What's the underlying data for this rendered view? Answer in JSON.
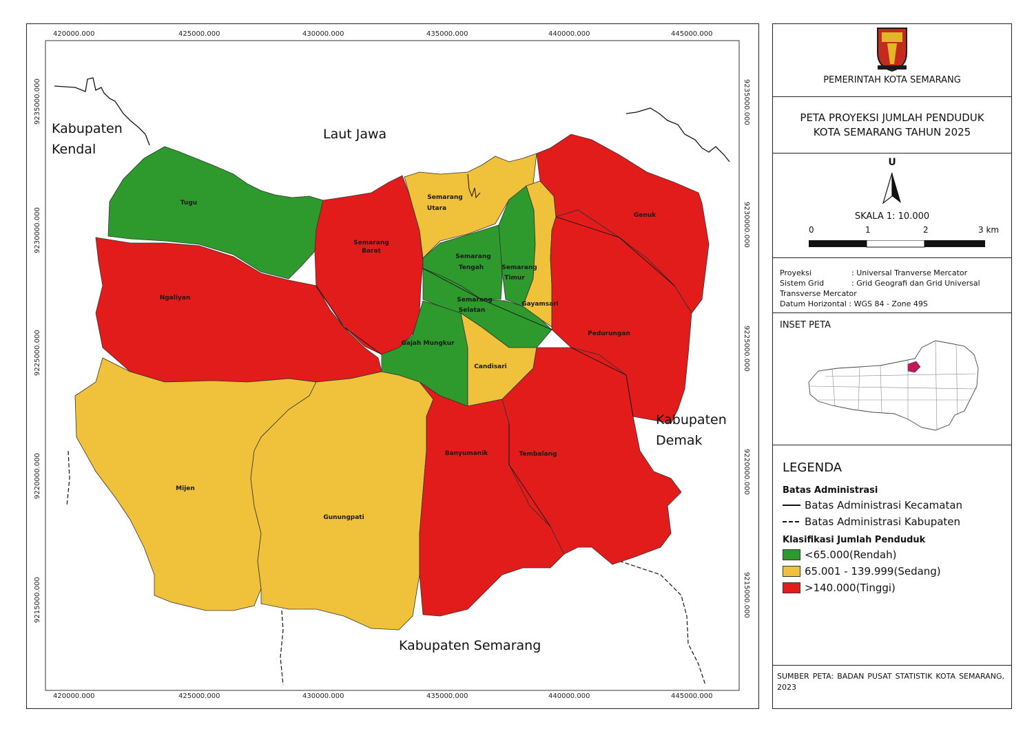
{
  "map": {
    "top_x_ticks": [
      "420000.000",
      "425000.000",
      "430000.000",
      "435000.000",
      "440000.000",
      "445000.000"
    ],
    "bottom_x_ticks": [
      "420000.000",
      "425000.000",
      "430000.000",
      "435000.000",
      "440000.000",
      "445000.000"
    ],
    "left_y_ticks": [
      "9235000.000",
      "9230000.000",
      "9225000.000",
      "9220000.000",
      "9215000.000"
    ],
    "right_y_ticks": [
      "9235000.000",
      "9230000.000",
      "9225000.000",
      "9220000.000",
      "9215000.000"
    ],
    "places": {
      "kendal_1": "Kabupaten",
      "kendal_2": "Kendal",
      "sea": "Laut Jawa",
      "demak_1": "Kabupaten",
      "demak_2": "Demak",
      "semarang": "Kabupaten Semarang"
    },
    "districts": {
      "tugu": "Tugu",
      "ngaliyan": "Ngaliyan",
      "semarang_barat_1": "Semarang",
      "semarang_barat_2": "Barat",
      "semarang_utara_1": "Semarang",
      "semarang_utara_2": "Utara",
      "semarang_tengah_1": "Semarang",
      "semarang_tengah_2": "Tengah",
      "semarang_timur_1": "Semarang",
      "semarang_timur_2": "Timur",
      "semarang_selatan_1": "Semarang",
      "semarang_selatan_2": "Selatan",
      "gayamsari": "Gayamsari",
      "genuk": "Genuk",
      "pedurungan": "Pedurungan",
      "gajah_mungkur": "Gajah Mungkur",
      "candisari": "Candisari",
      "mijen": "Mijen",
      "gunungpati": "Gunungpati",
      "banyumanik": "Banyumanik",
      "tembalang": "Tembalang"
    },
    "colors": {
      "low": "#2e9a2e",
      "medium": "#f0c23c",
      "high": "#e21b1b"
    }
  },
  "panel": {
    "org": "PEMERINTAH KOTA SEMARANG",
    "title_1": "PETA PROYEKSI JUMLAH PENDUDUK",
    "title_2": "KOTA SEMARANG TAHUN 2025",
    "north": "U",
    "scale": "SKALA 1: 10.000",
    "scale_ticks": [
      "0",
      "1",
      "2",
      "3 km"
    ],
    "proj_rows": [
      [
        "Proyeksi",
        ": Universal Tranverse Mercator"
      ],
      [
        "Sistem Grid",
        ": Grid Geografi dan Grid Universal"
      ]
    ],
    "proj_cont": "Transverse Mercator",
    "datum": "Datum Horizontal : WGS 84 - Zone 49S",
    "inset_title": "INSET PETA",
    "legend_title": "LEGENDA",
    "legend_admin": "Batas Administrasi",
    "legend_kec": "Batas Administrasi Kecamatan",
    "legend_kab": "Batas Administrasi Kabupaten",
    "legend_class": "Klasifikasi Jumlah Penduduk",
    "legend_low": "<65.000(Rendah)",
    "legend_med": "65.001 - 139.999(Sedang)",
    "legend_high": ">140.000(Tinggi)",
    "source": "SUMBER PETA: BADAN PUSAT STATISTIK KOTA SEMARANG, 2023"
  }
}
